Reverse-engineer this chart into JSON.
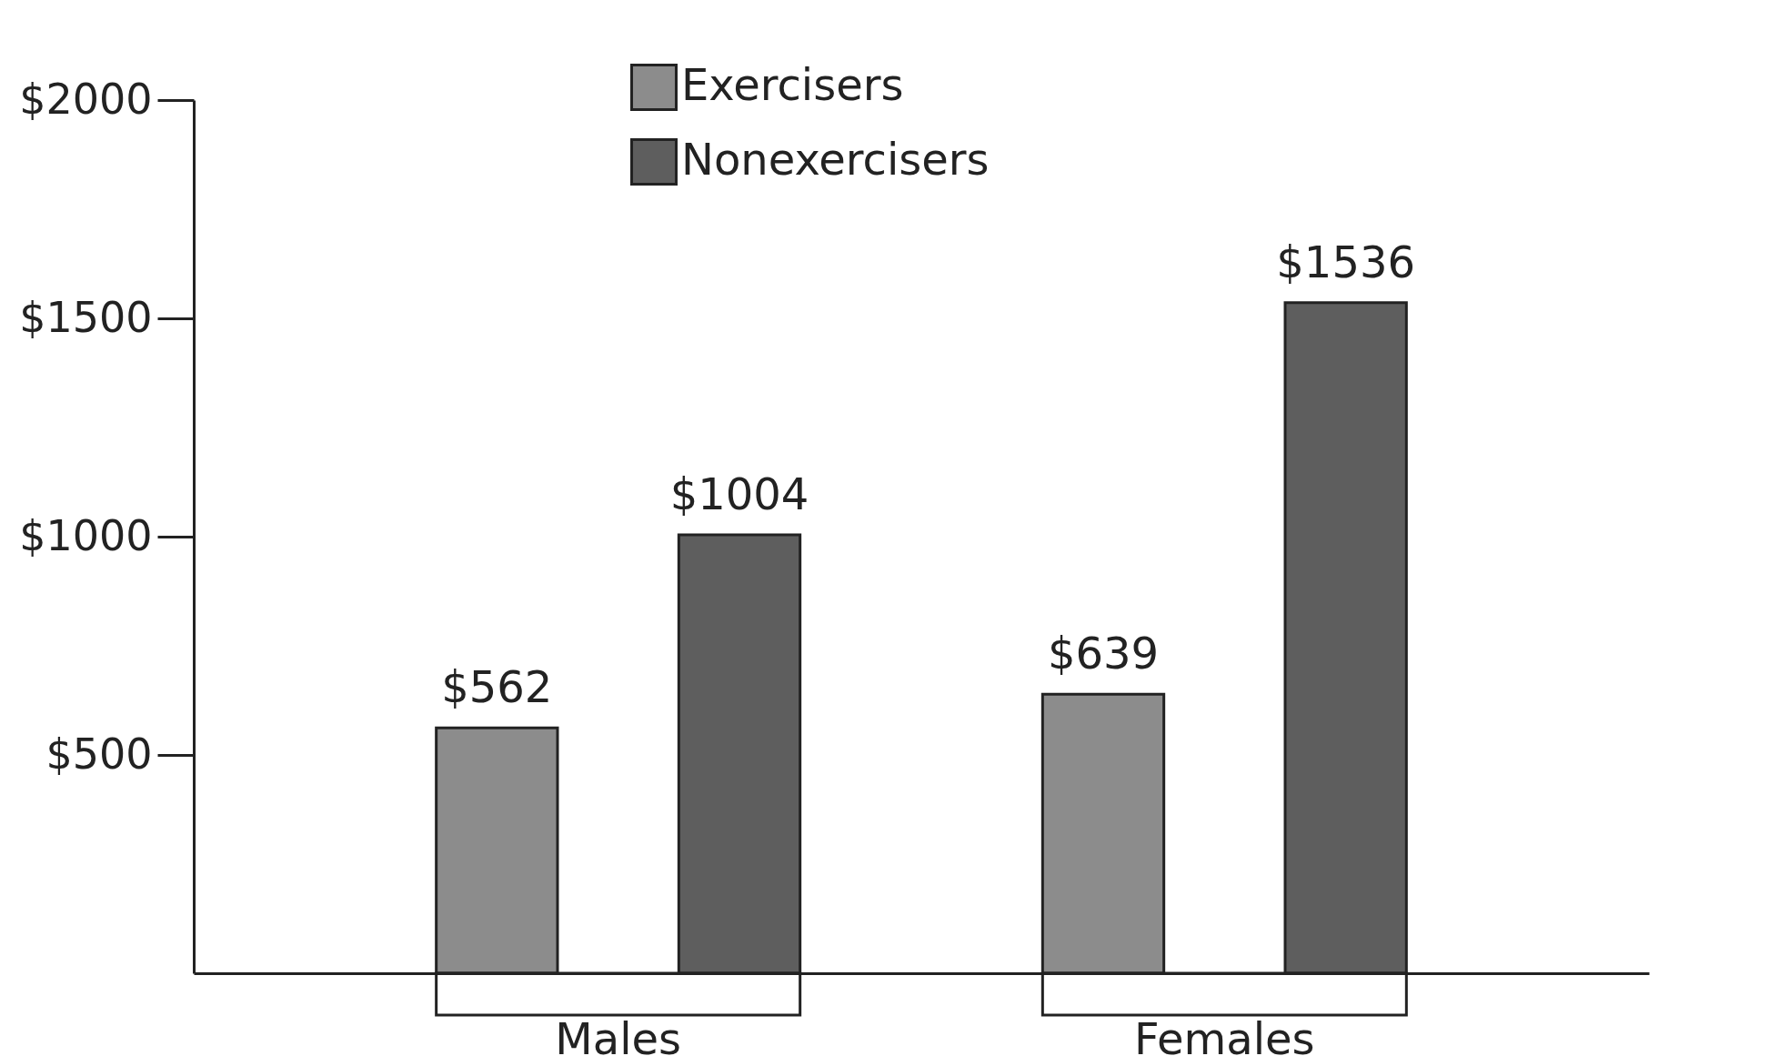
{
  "chart_data": {
    "type": "bar",
    "categories": [
      "Males",
      "Females"
    ],
    "series": [
      {
        "name": "Exercisers",
        "color": "#8c8c8c",
        "values": [
          562,
          639
        ],
        "value_labels": [
          "$562",
          "$639"
        ]
      },
      {
        "name": "Nonexercisers",
        "color": "#5e5e5e",
        "values": [
          1004,
          1536
        ],
        "value_labels": [
          "$1004",
          "$1536"
        ]
      }
    ],
    "ylim": [
      0,
      2000
    ],
    "yticks": [
      {
        "value": 500,
        "label": "$500"
      },
      {
        "value": 1000,
        "label": "$1000"
      },
      {
        "value": 1500,
        "label": "$1500"
      },
      {
        "value": 2000,
        "label": "$2000"
      }
    ],
    "legend": "top",
    "grid": false
  }
}
